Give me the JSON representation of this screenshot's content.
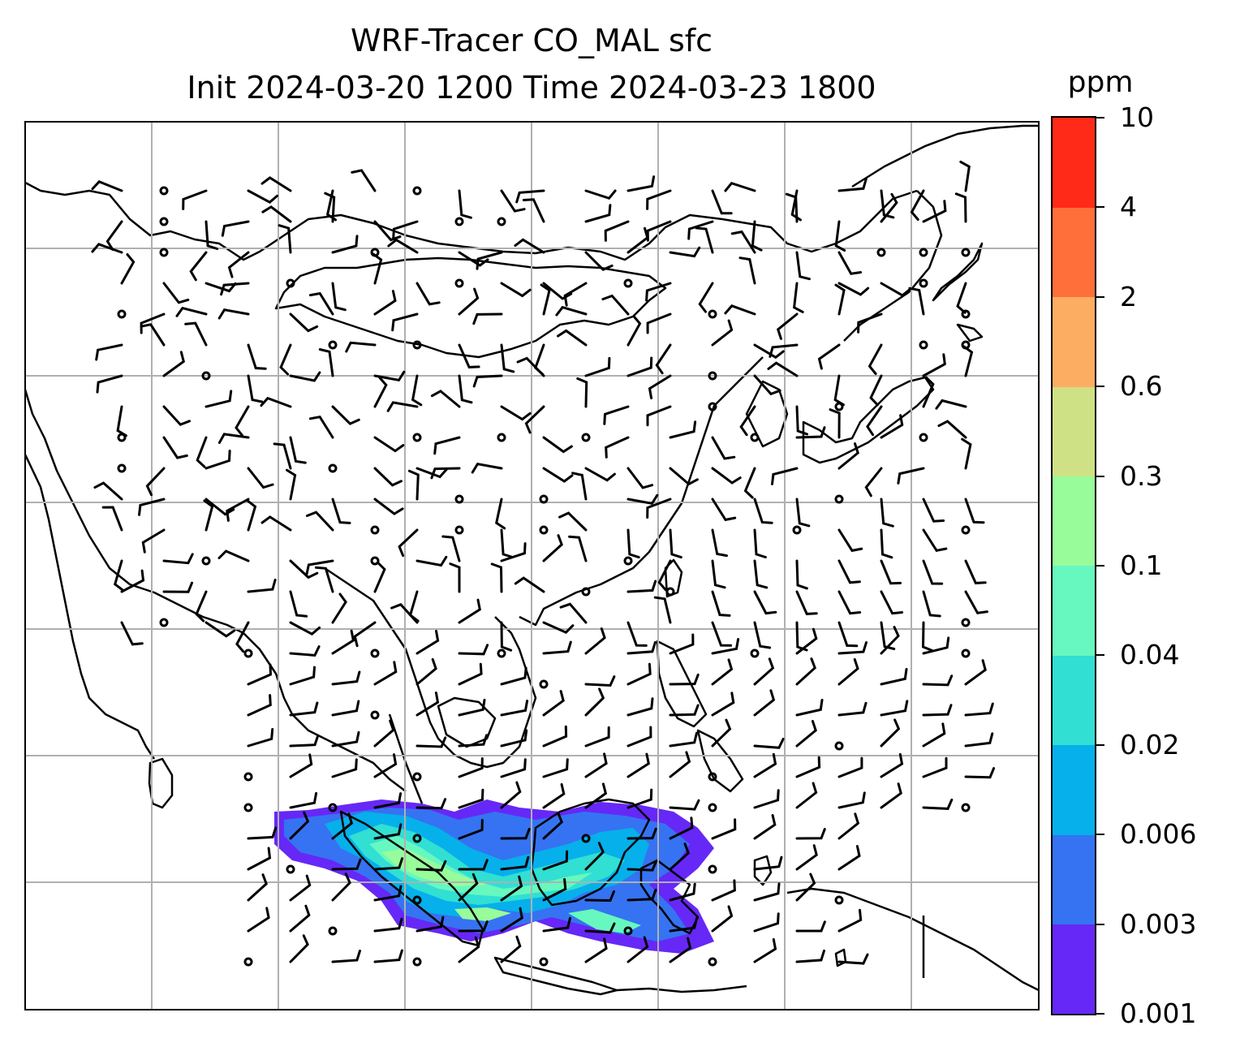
{
  "title": {
    "line1": "WRF-Tracer CO_MAL sfc",
    "line2": "Init 2024-03-20 1200 Time 2024-03-23 1800"
  },
  "colorbar": {
    "unit": "ppm",
    "levels": [
      "0.001",
      "0.003",
      "0.006",
      "0.02",
      "0.04",
      "0.1",
      "0.3",
      "0.6",
      "2",
      "4",
      "10"
    ],
    "colors": [
      "#6628f7",
      "#3573f2",
      "#06b0eb",
      "#31dfd3",
      "#66f8bf",
      "#98fc9a",
      "#cfe185",
      "#fdad62",
      "#ff6f3a",
      "#ff2a17"
    ]
  },
  "map": {
    "variable": "CO_MAL tracer concentration (surface)",
    "overlay": "wind barbs",
    "region": "South & East Asia / Maritime Continent"
  }
}
